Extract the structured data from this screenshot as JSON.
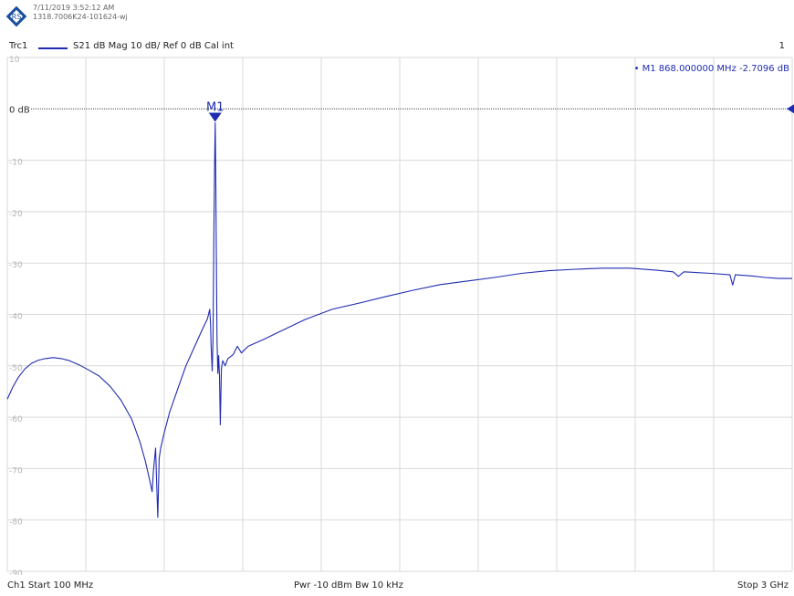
{
  "header": {
    "timestamp": "7/11/2019 3:52:12 AM",
    "instrument_id": "1318.7006K24-101624-wj",
    "logo": "rohde-schwarz-logo"
  },
  "trace_bar": {
    "trace_name": "Trc1",
    "description": "S21  dB Mag  10 dB/ Ref 0 dB  Cal int",
    "channel_number": "1"
  },
  "footer": {
    "start": "Ch1  Start  100 MHz",
    "power": "Pwr  -10 dBm  Bw  10 kHz",
    "stop": "Stop  3 GHz"
  },
  "colors": {
    "trace": "#1f2bb0",
    "grid": "#d9d9d9",
    "ref_line": "#4a4a4a",
    "marker": "#1f2bb0"
  },
  "chart_data": {
    "type": "line",
    "xlabel": "",
    "ylabel": "",
    "xlim": [
      100,
      3000
    ],
    "ylim": [
      -90,
      10
    ],
    "x_unit": "MHz",
    "ytick_labels": [
      "10",
      "0 dB",
      "-10",
      "-20",
      "-30",
      "-40",
      "-50",
      "-60",
      "-70",
      "-80",
      "-90"
    ],
    "yticks": [
      10,
      0,
      -10,
      -20,
      -30,
      -40,
      -50,
      -60,
      -70,
      -80,
      -90
    ],
    "grid": true,
    "x_divisions": 10,
    "reference_level": 0,
    "marker": {
      "label": "M1",
      "readout": "• M1  868.000000  MHz  -2.7096  dB",
      "x": 868,
      "y": -2.7096
    },
    "series": [
      {
        "points": [
          [
            100,
            -56.5
          ],
          [
            120,
            -54.2
          ],
          [
            140,
            -52.3
          ],
          [
            165,
            -50.6
          ],
          [
            190,
            -49.5
          ],
          [
            215,
            -48.9
          ],
          [
            240,
            -48.6
          ],
          [
            270,
            -48.4
          ],
          [
            300,
            -48.6
          ],
          [
            330,
            -49.0
          ],
          [
            365,
            -49.8
          ],
          [
            400,
            -50.8
          ],
          [
            440,
            -52.0
          ],
          [
            480,
            -54.0
          ],
          [
            520,
            -56.7
          ],
          [
            560,
            -60.4
          ],
          [
            590,
            -64.8
          ],
          [
            610,
            -68.5
          ],
          [
            625,
            -72.0
          ],
          [
            635,
            -74.5
          ],
          [
            640,
            -70.5
          ],
          [
            648,
            -66.0
          ],
          [
            652,
            -73.0
          ],
          [
            656,
            -79.5
          ],
          [
            661,
            -68.0
          ],
          [
            667,
            -66.0
          ],
          [
            680,
            -63.0
          ],
          [
            700,
            -59.0
          ],
          [
            730,
            -54.5
          ],
          [
            760,
            -50.0
          ],
          [
            790,
            -46.5
          ],
          [
            820,
            -43.0
          ],
          [
            840,
            -40.8
          ],
          [
            848,
            -39.0
          ],
          [
            851,
            -41.8
          ],
          [
            853,
            -46.0
          ],
          [
            857,
            -51.0
          ],
          [
            860,
            -45.0
          ],
          [
            863,
            -25.0
          ],
          [
            866,
            -10.0
          ],
          [
            868,
            -2.7
          ],
          [
            870,
            -10.0
          ],
          [
            872,
            -25.0
          ],
          [
            875,
            -45.0
          ],
          [
            878,
            -51.5
          ],
          [
            881,
            -48.0
          ],
          [
            884,
            -52.0
          ],
          [
            887,
            -61.5
          ],
          [
            891,
            -50.5
          ],
          [
            896,
            -49.0
          ],
          [
            905,
            -50.0
          ],
          [
            915,
            -48.6
          ],
          [
            935,
            -47.8
          ],
          [
            950,
            -46.2
          ],
          [
            965,
            -47.5
          ],
          [
            990,
            -46.2
          ],
          [
            1050,
            -44.8
          ],
          [
            1100,
            -43.5
          ],
          [
            1200,
            -41.0
          ],
          [
            1300,
            -39.0
          ],
          [
            1400,
            -37.8
          ],
          [
            1500,
            -36.5
          ],
          [
            1600,
            -35.3
          ],
          [
            1700,
            -34.2
          ],
          [
            1800,
            -33.5
          ],
          [
            1900,
            -32.8
          ],
          [
            2000,
            -32.0
          ],
          [
            2100,
            -31.5
          ],
          [
            2200,
            -31.2
          ],
          [
            2300,
            -31.0
          ],
          [
            2400,
            -31.0
          ],
          [
            2500,
            -31.4
          ],
          [
            2560,
            -31.7
          ],
          [
            2580,
            -32.6
          ],
          [
            2600,
            -31.7
          ],
          [
            2700,
            -32.0
          ],
          [
            2770,
            -32.3
          ],
          [
            2780,
            -34.3
          ],
          [
            2790,
            -32.3
          ],
          [
            2850,
            -32.5
          ],
          [
            2900,
            -32.8
          ],
          [
            2950,
            -33.0
          ],
          [
            3000,
            -33.0
          ]
        ]
      }
    ]
  }
}
